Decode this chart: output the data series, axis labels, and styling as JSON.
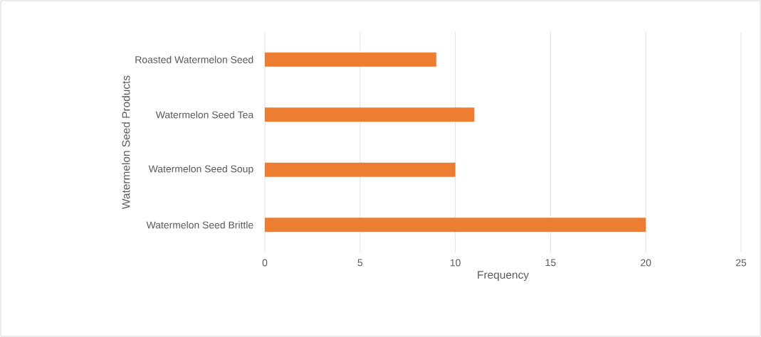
{
  "chart_data": {
    "type": "bar",
    "orientation": "horizontal",
    "categories": [
      "Roasted Watermelon Seed",
      "Watermelon Seed Tea",
      "Watermelon Seed  Soup",
      "Watermelon Seed Brittle"
    ],
    "values": [
      9,
      11,
      10,
      20
    ],
    "color": "#ed7d31",
    "xlim": [
      0,
      25
    ],
    "xticks": [
      0,
      5,
      10,
      15,
      20,
      25
    ],
    "grid": "x",
    "xlabel": "Frequency",
    "ylabel": "Watermelon Seed Products"
  }
}
